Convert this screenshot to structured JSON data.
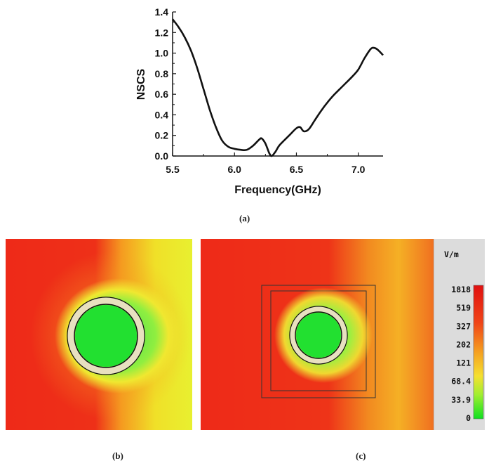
{
  "chart_data": {
    "type": "line",
    "title": "",
    "xlabel": "Frequency(GHz)",
    "ylabel": "NSCS",
    "xlim": [
      5.5,
      7.2
    ],
    "ylim": [
      0.0,
      1.4
    ],
    "x_ticks": [
      "5.5",
      "6.0",
      "6.5",
      "7.0"
    ],
    "x_tick_values": [
      5.5,
      6.0,
      6.5,
      7.0
    ],
    "y_ticks": [
      "0.0",
      "0.2",
      "0.4",
      "0.6",
      "0.8",
      "1.0",
      "1.2",
      "1.4"
    ],
    "y_tick_values": [
      0.0,
      0.2,
      0.4,
      0.6,
      0.8,
      1.0,
      1.2,
      1.4
    ],
    "series": [
      {
        "name": "NSCS",
        "color": "#111111",
        "x": [
          5.5,
          5.55,
          5.6,
          5.65,
          5.7,
          5.75,
          5.8,
          5.85,
          5.9,
          5.95,
          6.0,
          6.05,
          6.1,
          6.15,
          6.2,
          6.22,
          6.25,
          6.28,
          6.3,
          6.33,
          6.36,
          6.4,
          6.45,
          6.5,
          6.53,
          6.56,
          6.6,
          6.65,
          6.7,
          6.75,
          6.8,
          6.85,
          6.9,
          6.95,
          7.0,
          7.05,
          7.1,
          7.13,
          7.16,
          7.2
        ],
        "y": [
          1.33,
          1.25,
          1.15,
          1.02,
          0.85,
          0.65,
          0.45,
          0.28,
          0.15,
          0.09,
          0.07,
          0.06,
          0.06,
          0.1,
          0.16,
          0.17,
          0.12,
          0.03,
          0.0,
          0.04,
          0.1,
          0.15,
          0.21,
          0.27,
          0.28,
          0.24,
          0.26,
          0.35,
          0.44,
          0.52,
          0.59,
          0.65,
          0.71,
          0.77,
          0.84,
          0.95,
          1.04,
          1.05,
          1.03,
          0.98
        ]
      }
    ]
  },
  "panels": {
    "a_label": "(a)",
    "b_label": "(b)",
    "c_label": "(c)"
  },
  "legend": {
    "unit": "V/m",
    "labels": [
      "1818",
      "519",
      "327",
      "202",
      "121",
      "68.4",
      "33.9",
      "0"
    ]
  },
  "colors": {
    "field_red": "#ee2a18",
    "field_green": "#22e030",
    "ring": "#e8e0c0"
  }
}
